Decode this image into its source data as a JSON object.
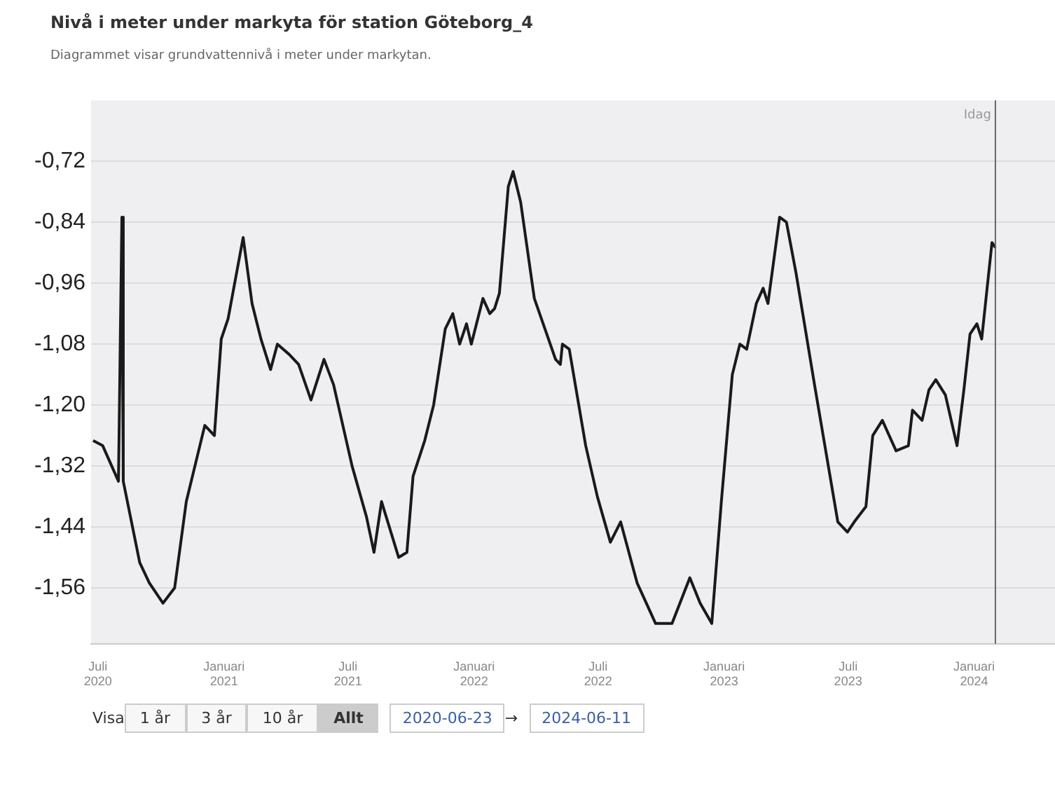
{
  "chart_data": {
    "type": "line",
    "title": "Nivå i meter under markyta för station Göteborg_4",
    "subtitle": "Diagrammet visar grundvattennivå i meter under markytan.",
    "annotations": [
      "Visa",
      "1 år",
      "3 år",
      "10 år",
      "Allt",
      "2020-06-23",
      "→",
      "2024-06-11"
    ],
    "x": [
      "2020-06-24",
      "2020-07-08",
      "2020-07-31",
      "2020-08-05",
      "2020-08-07",
      "2020-08-31",
      "2020-09-14",
      "2020-10-04",
      "2020-10-21",
      "2020-11-07",
      "2020-12-04",
      "2020-12-18",
      "2020-12-28",
      "2021-01-07",
      "2021-01-29",
      "2021-02-11",
      "2021-02-24",
      "2021-03-10",
      "2021-03-20",
      "2021-04-06",
      "2021-04-20",
      "2021-05-08",
      "2021-05-27",
      "2021-06-10",
      "2021-07-07",
      "2021-07-28",
      "2021-08-08",
      "2021-08-19",
      "2021-09-13",
      "2021-09-25",
      "2021-10-04",
      "2021-10-21",
      "2021-11-03",
      "2021-11-20",
      "2021-12-01",
      "2021-12-11",
      "2021-12-21",
      "2021-12-28",
      "2022-01-14",
      "2022-01-24",
      "2022-01-31",
      "2022-02-07",
      "2022-02-20",
      "2022-02-27",
      "2022-03-10",
      "2022-03-30",
      "2022-04-30",
      "2022-05-07",
      "2022-05-10",
      "2022-05-20",
      "2022-06-13",
      "2022-06-30",
      "2022-07-19",
      "2022-08-03",
      "2022-08-27",
      "2022-09-23",
      "2022-10-17",
      "2022-11-12",
      "2022-11-27",
      "2022-12-14",
      "2022-12-28",
      "2023-01-13",
      "2023-01-24",
      "2023-02-03",
      "2023-02-17",
      "2023-02-27",
      "2023-03-06",
      "2023-03-23",
      "2023-04-02",
      "2023-04-16",
      "2023-05-13",
      "2023-06-16",
      "2023-06-30",
      "2023-07-10",
      "2023-07-27",
      "2023-08-06",
      "2023-08-20",
      "2023-09-09",
      "2023-09-27",
      "2023-10-03",
      "2023-10-17",
      "2023-10-27",
      "2023-11-06",
      "2023-11-20",
      "2023-12-07",
      "2023-12-17",
      "2023-12-26",
      "2024-01-05",
      "2024-01-12",
      "2024-01-27",
      "2024-02-01"
    ],
    "series": [
      {
        "color": "#1a1a1a",
        "values": [
          -1.27,
          -1.28,
          -1.35,
          -0.83,
          -1.35,
          -1.51,
          -1.55,
          -1.59,
          -1.56,
          -1.39,
          -1.24,
          -1.26,
          -1.07,
          -1.03,
          -0.87,
          -1.0,
          -1.07,
          -1.13,
          -1.08,
          -1.1,
          -1.12,
          -1.19,
          -1.11,
          -1.16,
          -1.32,
          -1.42,
          -1.49,
          -1.39,
          -1.5,
          -1.49,
          -1.34,
          -1.27,
          -1.2,
          -1.05,
          -1.02,
          -1.08,
          -1.04,
          -1.08,
          -0.99,
          -1.02,
          -1.01,
          -0.98,
          -0.77,
          -0.74,
          -0.8,
          -0.99,
          -1.11,
          -1.12,
          -1.08,
          -1.09,
          -1.28,
          -1.38,
          -1.47,
          -1.43,
          -1.55,
          -1.63,
          -1.63,
          -1.54,
          -1.59,
          -1.63,
          -1.39,
          -1.14,
          -1.08,
          -1.09,
          -1.0,
          -0.97,
          -1.0,
          -0.83,
          -0.84,
          -0.94,
          -1.16,
          -1.43,
          -1.45,
          -1.43,
          -1.4,
          -1.26,
          -1.23,
          -1.29,
          -1.28,
          -1.21,
          -1.23,
          -1.17,
          -1.15,
          -1.18,
          -1.28,
          -1.17,
          -1.06,
          -1.04,
          -1.07,
          -0.88,
          -0.89
        ]
      }
    ],
    "xlim": [
      "2020-06-21",
      "2024-04-28"
    ],
    "xticks": [
      {
        "value": "2020-07-01",
        "label": "Juli 2020"
      },
      {
        "value": "2021-01-01",
        "label": "Januari 2021"
      },
      {
        "value": "2021-07-01",
        "label": "Juli 2021"
      },
      {
        "value": "2022-01-01",
        "label": "Januari 2022"
      },
      {
        "value": "2022-07-01",
        "label": "Juli 2022"
      },
      {
        "value": "2023-01-01",
        "label": "Januari 2023"
      },
      {
        "value": "2023-07-01",
        "label": "Juli 2023"
      },
      {
        "value": "2024-01-01",
        "label": "Januari 2024"
      }
    ],
    "ylim": [
      -1.67,
      -0.6
    ],
    "yticks": [
      {
        "value": -1.56,
        "label": "-1,56"
      },
      {
        "value": -1.44,
        "label": "-1,44"
      },
      {
        "value": -1.32,
        "label": "-1,32"
      },
      {
        "value": -1.2,
        "label": "-1,20"
      },
      {
        "value": -1.08,
        "label": "-1,08"
      },
      {
        "value": -0.96,
        "label": "-0,96"
      },
      {
        "value": -0.84,
        "label": "-0,84"
      },
      {
        "value": -0.72,
        "label": "-0,72"
      }
    ],
    "ref_lines": [
      {
        "axis": "x",
        "value": "2024-02-01",
        "label": "Idag",
        "color": "#666666"
      }
    ],
    "grid": "y",
    "legend": false,
    "marker": "none",
    "line_style": "solid"
  }
}
